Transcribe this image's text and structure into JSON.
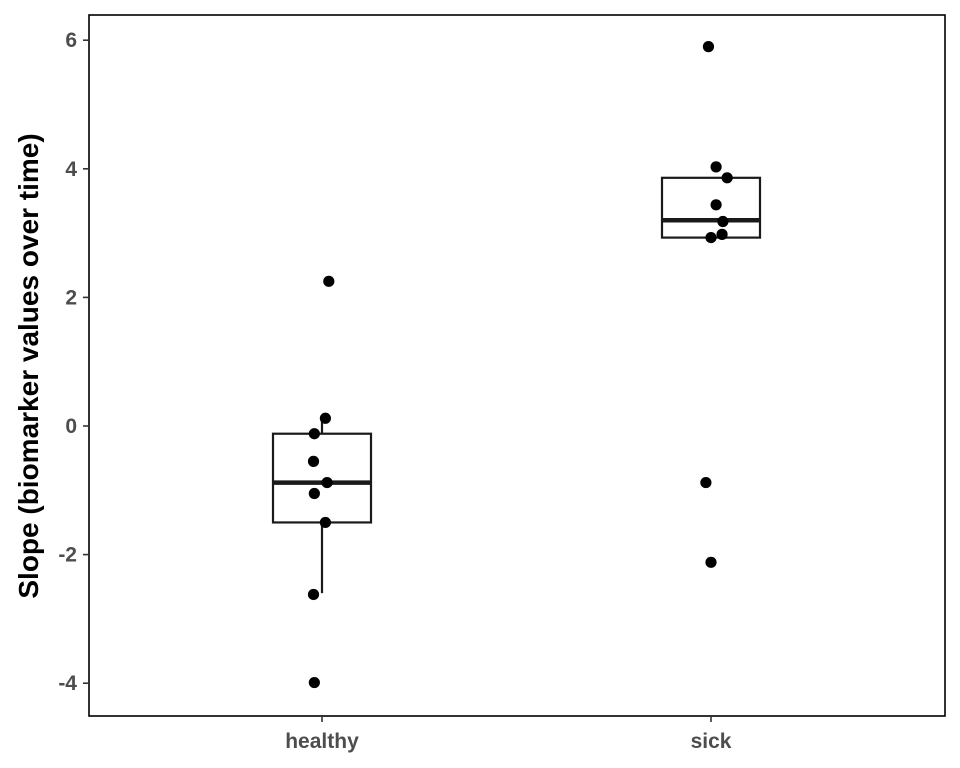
{
  "chart_data": {
    "type": "boxplot",
    "title": "",
    "xlabel": "",
    "ylabel": "Slope (biomarker values over time)",
    "categories": [
      "healthy",
      "sick"
    ],
    "ylim": [
      -4.5,
      6.4
    ],
    "yticks": [
      -4,
      -2,
      0,
      2,
      4,
      6
    ],
    "ytick_labels": [
      "-4",
      "-2",
      "0",
      "2",
      "4",
      "6"
    ],
    "grid": false,
    "boxes": [
      {
        "category": "healthy",
        "q1": -1.5,
        "median": -0.88,
        "q3": -0.12,
        "whisker_low": -2.6,
        "whisker_high": 0.12
      },
      {
        "category": "sick",
        "q1": 2.93,
        "median": 3.2,
        "q3": 3.86,
        "whisker_low": 2.93,
        "whisker_high": 3.86
      }
    ],
    "points": [
      {
        "category": "healthy",
        "x_jitter": 0.08,
        "y": 2.25
      },
      {
        "category": "healthy",
        "x_jitter": 0.04,
        "y": 0.12
      },
      {
        "category": "healthy",
        "x_jitter": -0.09,
        "y": -0.12
      },
      {
        "category": "healthy",
        "x_jitter": -0.1,
        "y": -0.55
      },
      {
        "category": "healthy",
        "x_jitter": 0.06,
        "y": -0.88
      },
      {
        "category": "healthy",
        "x_jitter": -0.09,
        "y": -1.05
      },
      {
        "category": "healthy",
        "x_jitter": 0.04,
        "y": -1.5
      },
      {
        "category": "healthy",
        "x_jitter": -0.1,
        "y": -2.62
      },
      {
        "category": "healthy",
        "x_jitter": -0.09,
        "y": -3.99
      },
      {
        "category": "sick",
        "x_jitter": -0.03,
        "y": 5.9
      },
      {
        "category": "sick",
        "x_jitter": 0.06,
        "y": 4.03
      },
      {
        "category": "sick",
        "x_jitter": 0.19,
        "y": 3.86
      },
      {
        "category": "sick",
        "x_jitter": 0.06,
        "y": 3.44
      },
      {
        "category": "sick",
        "x_jitter": 0.14,
        "y": 3.18
      },
      {
        "category": "sick",
        "x_jitter": 0.13,
        "y": 2.98
      },
      {
        "category": "sick",
        "x_jitter": 0.0,
        "y": 2.93
      },
      {
        "category": "sick",
        "x_jitter": -0.06,
        "y": -0.88
      },
      {
        "category": "sick",
        "x_jitter": -0.0,
        "y": -2.12
      }
    ],
    "colors": {
      "points": "#000000",
      "box_line": "#1a1a1a",
      "axis": "#000000",
      "text": "#4d4d4d"
    }
  }
}
